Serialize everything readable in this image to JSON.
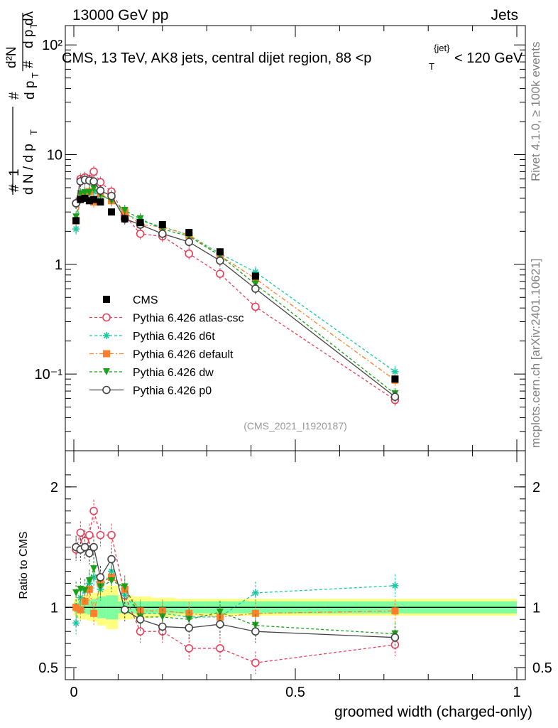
{
  "header": {
    "left": "13000 GeV pp",
    "right": "Jets"
  },
  "side": {
    "rivet": "Rivet 4.1.0, ≥ 100k events",
    "mcplots": "mcplots.cern.ch [arXiv:2401.10621]"
  },
  "chart_data": {
    "type": "line",
    "title": "CMS, 13 TeV, AK8 jets, central dijet region, 88 < p_T^{jet} < 120 GeV",
    "analysis_tag": "(CMS_2021_I1920187)",
    "xlabel": "groomed width (charged-only)",
    "ylabel_main": "1/(dN/dp_T) d²N/(dp_T dλ)",
    "ylabel_ratio": "Ratio to CMS",
    "xlim": [
      0,
      1
    ],
    "ylim_main": [
      0.02,
      150
    ],
    "ylim_ratio": [
      0.4,
      2.3
    ],
    "yscale_main": "log",
    "x_ticks": [
      "0",
      "0.5",
      "1"
    ],
    "y_ticks_main": [
      "10⁻¹",
      "1",
      "10",
      "10²"
    ],
    "y_ticks_ratio": [
      "0.5",
      "1",
      "2"
    ],
    "x": [
      0.005,
      0.015,
      0.025,
      0.035,
      0.045,
      0.06,
      0.085,
      0.115,
      0.15,
      0.2,
      0.26,
      0.33,
      0.41,
      0.725
    ],
    "reference": {
      "name": "CMS",
      "color": "#000000",
      "values": [
        2.5,
        3.9,
        4.0,
        3.8,
        3.9,
        3.7,
        3.0,
        2.6,
        2.4,
        2.3,
        1.95,
        1.3,
        0.78,
        0.09
      ]
    },
    "band_ratio": {
      "inner_hw": [
        0.04,
        0.05,
        0.05,
        0.06,
        0.07,
        0.09,
        0.1,
        0.05,
        0.05,
        0.05,
        0.05,
        0.05,
        0.05,
        0.05
      ],
      "outer_hw": [
        0.07,
        0.1,
        0.1,
        0.11,
        0.12,
        0.15,
        0.18,
        0.1,
        0.09,
        0.08,
        0.07,
        0.07,
        0.07,
        0.07
      ]
    },
    "series": [
      {
        "name": "Pythia 6.426 atlas-csc",
        "color": "#e8405a",
        "marker": "circle-open",
        "dash": "4,3",
        "values": [
          3.6,
          6.0,
          6.2,
          6.0,
          7.0,
          5.6,
          4.6,
          2.8,
          1.9,
          1.8,
          1.25,
          0.82,
          0.41,
          0.058
        ],
        "ratio": [
          1.48,
          1.62,
          1.55,
          1.6,
          1.8,
          1.6,
          1.6,
          1.1,
          0.8,
          0.8,
          0.66,
          0.66,
          0.54,
          0.69
        ]
      },
      {
        "name": "Pythia 6.426 d6t",
        "color": "#19c9a0",
        "marker": "star",
        "dash": "4,3",
        "values": [
          2.1,
          4.2,
          4.6,
          4.7,
          4.6,
          4.2,
          3.9,
          2.9,
          2.5,
          2.2,
          1.85,
          1.25,
          0.85,
          0.105
        ],
        "ratio": [
          0.87,
          1.08,
          1.14,
          1.2,
          1.25,
          1.15,
          1.3,
          1.1,
          0.95,
          0.95,
          0.92,
          0.92,
          1.12,
          1.18
        ]
      },
      {
        "name": "Pythia 6.426 default",
        "color": "#ff7f2a",
        "marker": "square",
        "dash": "6,3,2,3",
        "values": [
          2.5,
          4.0,
          4.3,
          4.6,
          3.7,
          4.4,
          3.8,
          3.0,
          2.3,
          2.2,
          1.85,
          1.2,
          0.74,
          0.088
        ],
        "ratio": [
          1.0,
          0.98,
          1.05,
          1.15,
          0.95,
          1.2,
          1.25,
          1.15,
          0.97,
          0.97,
          0.95,
          0.92,
          0.95,
          0.97
        ]
      },
      {
        "name": "Pythia 6.426 dw",
        "color": "#1aa31a",
        "marker": "triangle-down",
        "dash": "4,3",
        "values": [
          2.7,
          4.4,
          4.5,
          4.5,
          4.9,
          4.3,
          3.8,
          3.1,
          2.6,
          2.1,
          1.8,
          1.2,
          0.66,
          0.066
        ],
        "ratio": [
          1.12,
          1.15,
          1.14,
          1.22,
          1.32,
          1.17,
          1.22,
          1.17,
          0.92,
          0.92,
          0.9,
          0.96,
          0.85,
          0.78
        ]
      },
      {
        "name": "Pythia 6.426 p0",
        "color": "#444444",
        "marker": "circle-open",
        "dash": "none",
        "values": [
          3.6,
          5.7,
          5.9,
          5.8,
          5.7,
          4.7,
          4.2,
          2.6,
          2.3,
          1.9,
          1.6,
          1.08,
          0.6,
          0.062
        ],
        "ratio": [
          1.5,
          1.48,
          1.5,
          1.45,
          1.5,
          1.25,
          1.4,
          0.98,
          0.9,
          0.84,
          0.83,
          0.86,
          0.8,
          0.75
        ]
      }
    ]
  }
}
